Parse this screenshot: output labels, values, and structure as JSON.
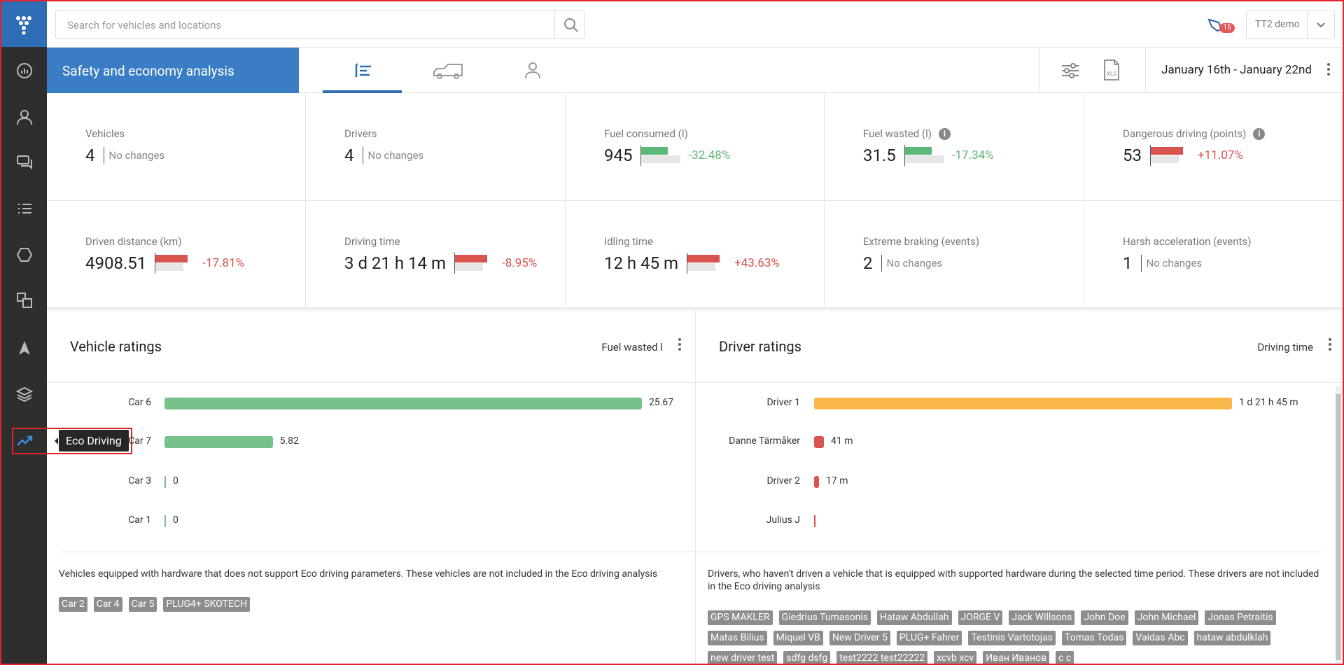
{
  "search_placeholder": "Search for vehicles and locations",
  "notification_count": "15",
  "account": "TT2 demo",
  "page_title": "Safety and economy analysis",
  "date_range": "January 16th - January 22nd",
  "tooltip": "Eco Driving",
  "kpis": [
    {
      "label": "Vehicles",
      "value": "4",
      "change": "No changes"
    },
    {
      "label": "Drivers",
      "value": "4",
      "change": "No changes"
    },
    {
      "label": "Fuel consumed (l)",
      "value": "945",
      "change": "-32.48%",
      "color": "#5cb878"
    },
    {
      "label": "Fuel wasted (l)",
      "value": "31.5",
      "change": "-17.34%",
      "color": "#5cb878",
      "info": true
    },
    {
      "label": "Dangerous driving (points)",
      "value": "53",
      "change": "+11.07%",
      "color": "#d9534f",
      "info": true
    },
    {
      "label": "Driven distance (km)",
      "value": "4908.51",
      "change": "-17.81%",
      "color": "#d9534f"
    },
    {
      "label": "Driving time",
      "value": "3 d 21 h 14 m",
      "change": "-8.95%",
      "color": "#d9534f"
    },
    {
      "label": "Idling time",
      "value": "12 h 45 m",
      "change": "+43.63%",
      "color": "#d9534f"
    },
    {
      "label": "Extreme braking (events)",
      "value": "2",
      "change": "No changes"
    },
    {
      "label": "Harsh acceleration (events)",
      "value": "1",
      "change": "No changes"
    }
  ],
  "vehicle_ratings": {
    "title": "Vehicle ratings",
    "metric": "Fuel wasted l",
    "bar_color": "#77c18a",
    "items": [
      {
        "label": "Car 6",
        "value": 25.67
      },
      {
        "label": "Car 7",
        "value": 5.82
      },
      {
        "label": "Car 3",
        "value": 0
      },
      {
        "label": "Car 1",
        "value": 0
      }
    ],
    "note": "Vehicles equipped with hardware that does not support Eco driving parameters. These vehicles are not included in the Eco driving analysis",
    "tags": [
      "Car 2",
      "Car 4",
      "Car 5",
      "PLUG4+ SKOTECH"
    ]
  },
  "driver_ratings": {
    "title": "Driver ratings",
    "metric": "Driving time",
    "items": [
      {
        "label": "Driver 1",
        "value": "1 d 21 h 45 m",
        "color": "#fbb84a"
      },
      {
        "label": "Danne Tärmåker",
        "value": "41 m",
        "color": "#d9534f"
      },
      {
        "label": "Driver 2",
        "value": "17 m",
        "color": "#d9534f"
      },
      {
        "label": "Julius J",
        "color": "#d9534f"
      }
    ],
    "note": "Drivers, who haven't driven a vehicle that is equipped with supported hardware during the selected time period. These drivers are not included in the Eco driving analysis",
    "tags": [
      "GPS MAKLER",
      "Giedrius Tumasonis",
      "Hataw Abdullah",
      "JORGE V",
      "Jack Willsons",
      "John Doe",
      "John Michael",
      "Jonas Petraitis",
      "Matas Bilius",
      "Miquel VB",
      "New Driver 5",
      "PLUG+ Fahrer",
      "Testinis Vartotojas",
      "Tomas Todas",
      "Vaidas Abc",
      "hataw abdulklah",
      "new driver test",
      "sdfg dsfg",
      "test2222 test22222",
      "xcvb xcv",
      "Иван Иванов",
      "c c"
    ]
  }
}
